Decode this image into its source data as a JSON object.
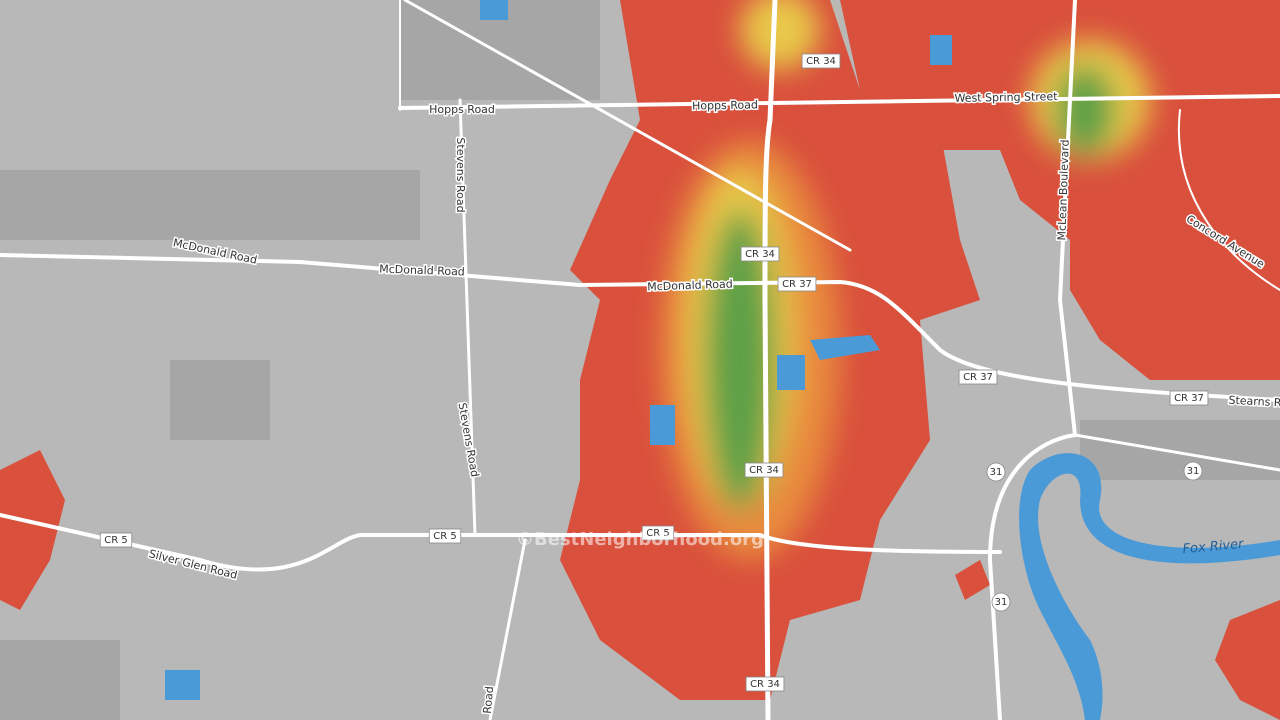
{
  "map": {
    "labels": [
      "Hopps Road",
      "Hopps Road",
      "West Spring Street",
      "CR 34",
      "CR 34",
      "CR 34",
      "CR 34",
      "Stevens Road",
      "Stevens Road",
      "McDonald Road",
      "McDonald Road",
      "McDonald Road",
      "CR 37",
      "CR 37",
      "CR 37",
      "Stearns R",
      "McLean Boulevard",
      "Concord Avenue",
      "CR 5",
      "CR 5",
      "CR 5",
      "Silver Glen Road",
      "31",
      "31",
      "31",
      "Fox River",
      "Road"
    ],
    "watermark": "©BestNeighborhood.org"
  }
}
